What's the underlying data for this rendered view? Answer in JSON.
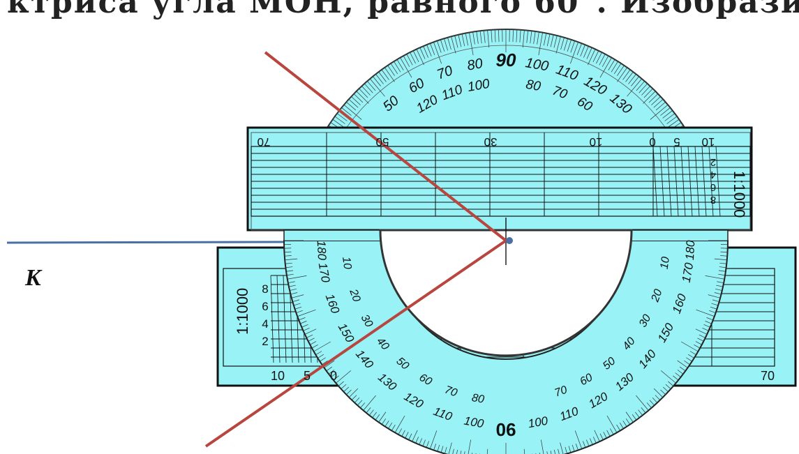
{
  "heading": "ктриса угла МОН, равного 60°. Изобрази",
  "point_label": "K",
  "protractor": {
    "outer_scale_left": [
      "10",
      "20",
      "30",
      "40",
      "50",
      "60",
      "70",
      "80",
      "90",
      "100",
      "110",
      "120",
      "130",
      "140",
      "150",
      "160",
      "170",
      "180"
    ],
    "top_major": "90",
    "top_outer_ticks": [
      "50",
      "60",
      "70",
      "80",
      "90",
      "100",
      "110",
      "120",
      "130"
    ],
    "top_inner_ticks": [
      "120",
      "110",
      "100",
      "80",
      "70",
      "60"
    ],
    "bottom_major": "90",
    "inner_left": [
      "180",
      "170",
      "160",
      "150",
      "140",
      "130",
      "120",
      "110",
      "100"
    ],
    "inner_left_b": [
      "10",
      "20",
      "30",
      "40",
      "50",
      "60",
      "70",
      "80"
    ],
    "inner_right": [
      "180",
      "170",
      "160",
      "150",
      "140",
      "130",
      "120",
      "110",
      "100"
    ],
    "inner_right_b": [
      "10",
      "20",
      "30",
      "40",
      "50",
      "60",
      "70"
    ]
  },
  "upper_ruler": {
    "scale": "1:1000",
    "top_ticks": [
      "70",
      "50",
      "30",
      "10",
      "0",
      "5",
      "10"
    ],
    "side_ticks": [
      "2",
      "4",
      "6",
      "8"
    ]
  },
  "lower_ruler": {
    "scale": "1:1000",
    "bottom_ticks": [
      "10",
      "5",
      "0",
      "70"
    ],
    "side_ticks": [
      "8",
      "6",
      "4",
      "2"
    ]
  },
  "colors": {
    "tool_fill": "#99f2f5",
    "tool_stroke": "#1a1a1a",
    "ray": "#b8463f",
    "baseline": "#4a6fa5"
  }
}
